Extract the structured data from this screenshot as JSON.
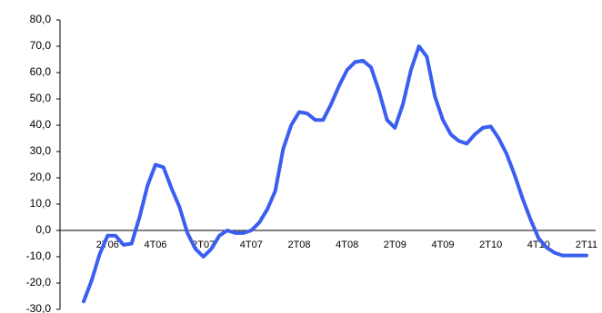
{
  "chart_data": {
    "type": "line",
    "categories": [
      null,
      null,
      null,
      "2T06",
      null,
      null,
      null,
      null,
      null,
      "4T06",
      null,
      null,
      null,
      null,
      null,
      "2T07",
      null,
      null,
      null,
      null,
      null,
      "4T07",
      null,
      null,
      null,
      null,
      null,
      "2T08",
      null,
      null,
      null,
      null,
      null,
      "4T08",
      null,
      null,
      null,
      null,
      null,
      "2T09",
      null,
      null,
      null,
      null,
      null,
      "4T09",
      null,
      null,
      null,
      null,
      null,
      "2T10",
      null,
      null,
      null,
      null,
      null,
      "4T10",
      null,
      null,
      null,
      null,
      null,
      "2T11"
    ],
    "series": [
      {
        "color": "#3a5ef0",
        "values": [
          -27,
          -19,
          -9,
          -2,
          -2,
          -5.5,
          -5,
          5,
          17,
          25,
          24,
          16,
          9,
          -1,
          -7,
          -10,
          -7,
          -2,
          0,
          -1,
          -1,
          0,
          3,
          8,
          15,
          31,
          40,
          45,
          44.5,
          42,
          42,
          48,
          55,
          61,
          64,
          64.5,
          62,
          53,
          42,
          39,
          48,
          61,
          70,
          66,
          51,
          42,
          36.5,
          34,
          33,
          36.5,
          39,
          39.5,
          35,
          29,
          21,
          12,
          4,
          -3,
          -6.5,
          -8.5,
          -9.5,
          -9.5,
          -9.5,
          -9.5
        ]
      }
    ],
    "ylim": [
      -30,
      80
    ],
    "yticks": [
      {
        "value": -30,
        "label": "-30,0"
      },
      {
        "value": -20,
        "label": "-20,0"
      },
      {
        "value": -10,
        "label": "-10,0"
      },
      {
        "value": 0,
        "label": "0,0"
      },
      {
        "value": 10,
        "label": "10,0"
      },
      {
        "value": 20,
        "label": "20,0"
      },
      {
        "value": 30,
        "label": "30,0"
      },
      {
        "value": 40,
        "label": "40,0"
      },
      {
        "value": 50,
        "label": "50,0"
      },
      {
        "value": 60,
        "label": "60,0"
      },
      {
        "value": 70,
        "label": "70,0"
      },
      {
        "value": 80,
        "label": "80,0"
      }
    ],
    "grid": false
  }
}
